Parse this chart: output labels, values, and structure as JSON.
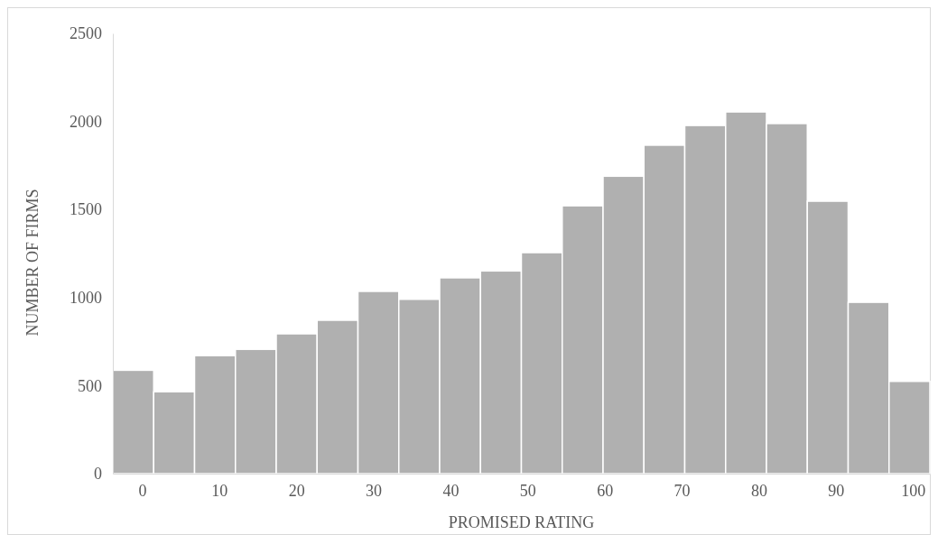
{
  "chart_data": {
    "type": "histogram",
    "xlabel": "PROMISED RATING",
    "ylabel": "NUMBER OF FIRMS",
    "bins": [
      -3.8,
      1.5,
      6.8,
      12.1,
      17.4,
      22.7,
      28,
      33.3,
      38.6,
      43.9,
      49.2,
      54.5,
      59.8,
      65.1,
      70.4,
      75.7,
      81,
      86.3,
      91.6,
      96.9,
      102.2
    ],
    "values": [
      587,
      465,
      670,
      706,
      794,
      871,
      1035,
      990,
      1112,
      1151,
      1255,
      1521,
      1689,
      1865,
      1977,
      2054,
      1988,
      1547,
      973,
      524
    ],
    "color": "#b0b0b0",
    "xlim": [
      -3.8,
      102.2
    ],
    "xticks": [
      0,
      10,
      20,
      30,
      40,
      50,
      60,
      70,
      80,
      90,
      100
    ],
    "ylim": [
      0,
      2500
    ],
    "yticks": [
      0,
      500,
      1000,
      1500,
      2000,
      2500
    ]
  }
}
